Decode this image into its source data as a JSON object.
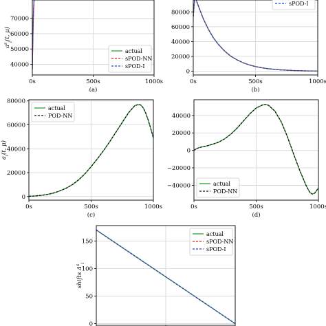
{
  "chart_data": [
    {
      "id": "a",
      "type": "line",
      "caption": "(a)",
      "ylabel": "a^s_i(t, μ)",
      "xlabel": "",
      "xlim": [
        0,
        1000
      ],
      "ylim": [
        33000,
        82000
      ],
      "xticks": [
        0,
        500,
        1000
      ],
      "xtick_labels": [
        "0s",
        "500s",
        "1000s"
      ],
      "yticks": [
        40000,
        50000,
        60000,
        70000
      ],
      "ytick_labels": [
        "40000",
        "50000",
        "60000",
        "70000"
      ],
      "grid": true,
      "legend": {
        "placement": "bottom-right"
      },
      "series": [
        {
          "name": "actual",
          "color": "#2ca02c",
          "dash": "solid",
          "x": [
            0,
            2,
            4,
            6,
            8,
            10,
            13,
            16
          ],
          "y": [
            37000,
            46000,
            55000,
            63000,
            70000,
            75500,
            80000,
            84000
          ]
        },
        {
          "name": "sPOD-NN",
          "color": "#d62728",
          "dash": "dashed",
          "x": [
            0,
            2,
            4,
            6,
            8,
            10,
            13,
            16
          ],
          "y": [
            36500,
            45800,
            54800,
            62800,
            69800,
            75400,
            80000,
            84000
          ]
        },
        {
          "name": "sPOD-I",
          "color": "#1f3fd9",
          "dash": "dashed",
          "x": [
            0,
            2,
            4,
            6,
            8,
            10,
            13,
            16
          ],
          "y": [
            37500,
            46200,
            55200,
            63200,
            70200,
            75600,
            80000,
            84000
          ]
        }
      ]
    },
    {
      "id": "b",
      "type": "line",
      "caption": "(b)",
      "xlabel": "",
      "ylabel": "",
      "xlim": [
        0,
        1000
      ],
      "ylim": [
        -5000,
        96000
      ],
      "xticks": [
        0,
        500,
        1000
      ],
      "xtick_labels": [
        "0s",
        "500s",
        "1000s"
      ],
      "yticks": [
        0,
        20000,
        40000,
        60000,
        80000
      ],
      "ytick_labels": [
        "0",
        "20000",
        "40000",
        "60000",
        "80000"
      ],
      "grid": true,
      "legend": {
        "placement": "top-right",
        "visible_entries": [
          "sPOD-I"
        ]
      },
      "series": [
        {
          "name": "actual",
          "color": "#2ca02c",
          "dash": "solid",
          "x": [
            0,
            5,
            10,
            15,
            20,
            30,
            50,
            80,
            120,
            160,
            200,
            250,
            300,
            350,
            400,
            450,
            500,
            550,
            600,
            650,
            700,
            800,
            900,
            1000
          ],
          "y": [
            74000,
            85000,
            95000,
            100000,
            98000,
            93000,
            84000,
            71000,
            57000,
            45500,
            36500,
            27500,
            20500,
            15500,
            11500,
            8500,
            6300,
            4700,
            3500,
            2600,
            1900,
            1000,
            500,
            250
          ]
        },
        {
          "name": "sPOD-NN",
          "color": "#d62728",
          "dash": "dashed",
          "x": [
            0,
            5,
            10,
            15,
            20,
            30,
            50,
            80,
            120,
            160,
            200,
            250,
            300,
            350,
            400,
            450,
            500,
            550,
            600,
            650,
            700,
            800,
            900,
            1000
          ],
          "y": [
            73500,
            84800,
            94800,
            100000,
            98000,
            93000,
            84000,
            71000,
            57000,
            45500,
            36500,
            27500,
            20500,
            15500,
            11500,
            8500,
            6300,
            4700,
            3500,
            2600,
            1900,
            1000,
            500,
            250
          ]
        },
        {
          "name": "sPOD-I",
          "color": "#1f3fd9",
          "dash": "dashed",
          "x": [
            0,
            5,
            10,
            15,
            20,
            30,
            50,
            80,
            120,
            160,
            200,
            250,
            300,
            350,
            400,
            450,
            500,
            550,
            600,
            650,
            700,
            800,
            900,
            1000
          ],
          "y": [
            74500,
            85200,
            95200,
            100000,
            98000,
            93000,
            84000,
            71000,
            57000,
            45500,
            36500,
            27500,
            20500,
            15500,
            11500,
            8500,
            6300,
            4700,
            3500,
            2600,
            1900,
            1000,
            500,
            250
          ]
        }
      ]
    },
    {
      "id": "c",
      "type": "line",
      "caption": "(c)",
      "ylabel": "a_i(t, μ)",
      "xlabel": "",
      "xlim": [
        0,
        1000
      ],
      "ylim": [
        -3000,
        81000
      ],
      "xticks": [
        0,
        500,
        1000
      ],
      "xtick_labels": [
        "0s",
        "500s",
        "1000s"
      ],
      "yticks": [
        0,
        20000,
        40000,
        60000,
        80000
      ],
      "ytick_labels": [
        "0",
        "20000",
        "40000",
        "60000",
        "80000"
      ],
      "grid": true,
      "legend": {
        "placement": "top-left"
      },
      "series": [
        {
          "name": "actual",
          "color": "#2ca02c",
          "dash": "solid",
          "x": [
            0,
            50,
            100,
            150,
            200,
            250,
            300,
            350,
            400,
            450,
            500,
            550,
            600,
            650,
            700,
            750,
            800,
            850,
            880,
            900,
            920,
            940,
            960,
            980,
            1000
          ],
          "y": [
            200,
            500,
            1000,
            1800,
            3000,
            4800,
            7000,
            10000,
            14000,
            19000,
            25000,
            31500,
            38500,
            46000,
            54000,
            62000,
            70000,
            76000,
            77000,
            76500,
            74000,
            69500,
            63500,
            56500,
            49000
          ]
        },
        {
          "name": "POD-NN",
          "color": "#111111",
          "dash": "dashed",
          "x": [
            0,
            50,
            100,
            150,
            200,
            250,
            300,
            350,
            400,
            450,
            500,
            550,
            600,
            650,
            700,
            750,
            800,
            850,
            880,
            900,
            920,
            940,
            960,
            980,
            1000
          ],
          "y": [
            200,
            500,
            1000,
            1800,
            3000,
            4800,
            7000,
            10000,
            14000,
            19000,
            25000,
            31500,
            38500,
            46000,
            54000,
            62000,
            70000,
            76000,
            77000,
            76500,
            74000,
            69500,
            63500,
            56500,
            49000
          ]
        }
      ]
    },
    {
      "id": "d",
      "type": "line",
      "caption": "(d)",
      "xlabel": "",
      "ylabel": "",
      "xlim": [
        0,
        1000
      ],
      "ylim": [
        -57000,
        58000
      ],
      "xticks": [
        0,
        500,
        1000
      ],
      "xtick_labels": [
        "0s",
        "500s",
        "1000s"
      ],
      "yticks": [
        -40000,
        -20000,
        0,
        20000,
        40000
      ],
      "ytick_labels": [
        "−40000",
        "−20000",
        "0",
        "20000",
        "40000"
      ],
      "grid": true,
      "legend": {
        "placement": "bottom-left"
      },
      "series": [
        {
          "name": "actual",
          "color": "#2ca02c",
          "dash": "solid",
          "x": [
            0,
            20,
            50,
            100,
            150,
            200,
            250,
            300,
            350,
            400,
            450,
            500,
            550,
            580,
            600,
            650,
            700,
            750,
            800,
            850,
            900,
            930,
            950,
            970,
            1000
          ],
          "y": [
            0,
            2000,
            3500,
            5000,
            7000,
            9500,
            13500,
            19000,
            26000,
            34000,
            42000,
            48500,
            52000,
            52500,
            51500,
            45000,
            33000,
            16000,
            -4000,
            -23000,
            -40000,
            -48000,
            -50000,
            -49000,
            -43000
          ]
        },
        {
          "name": "POD-NN",
          "color": "#111111",
          "dash": "dashed",
          "x": [
            0,
            20,
            50,
            100,
            150,
            200,
            250,
            300,
            350,
            400,
            450,
            500,
            550,
            580,
            600,
            650,
            700,
            750,
            800,
            850,
            900,
            930,
            950,
            970,
            1000
          ],
          "y": [
            0,
            2000,
            3500,
            5000,
            7000,
            9500,
            13500,
            19000,
            26000,
            34000,
            42000,
            48500,
            52000,
            52500,
            51500,
            45000,
            33000,
            16000,
            -4000,
            -23000,
            -40000,
            -48000,
            -50000,
            -49000,
            -43000
          ]
        }
      ]
    },
    {
      "id": "e",
      "type": "line",
      "caption": "",
      "ylabel": "shifts Δ^s_i",
      "xlabel": "",
      "xlim": [
        0,
        1000
      ],
      "ylim": [
        -3,
        178
      ],
      "xticks": [
        0,
        500,
        1000
      ],
      "xtick_labels": [],
      "yticks": [
        0,
        50,
        100,
        150
      ],
      "ytick_labels": [
        "0",
        "50",
        "100",
        "150"
      ],
      "grid": true,
      "legend": {
        "placement": "top-right"
      },
      "series": [
        {
          "name": "actual",
          "color": "#2ca02c",
          "dash": "solid",
          "x": [
            0,
            1000
          ],
          "y": [
            170,
            0
          ]
        },
        {
          "name": "sPOD-NN",
          "color": "#d62728",
          "dash": "dashed",
          "x": [
            0,
            1000
          ],
          "y": [
            170,
            0
          ]
        },
        {
          "name": "sPOD-I",
          "color": "#1f3fd9",
          "dash": "dashed",
          "x": [
            0,
            1000
          ],
          "y": [
            170,
            0
          ]
        }
      ]
    }
  ]
}
